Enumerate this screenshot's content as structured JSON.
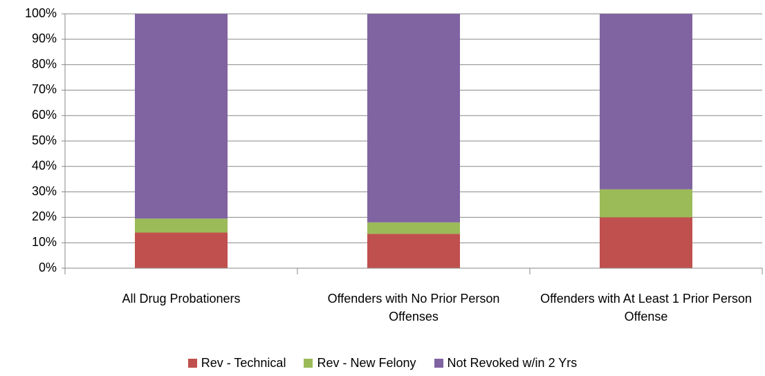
{
  "chart_data": {
    "type": "stacked_bar",
    "categories": [
      "All Drug Probationers",
      "Offenders with No Prior Person Offenses",
      "Offenders with At Least 1 Prior Person Offense"
    ],
    "series": [
      {
        "name": "Rev - Technical",
        "color": "#c0504d",
        "values": [
          14,
          13.5,
          20
        ]
      },
      {
        "name": "Rev - New Felony",
        "color": "#9bbb59",
        "values": [
          5.5,
          4.5,
          11
        ]
      },
      {
        "name": "Not Revoked w/in 2 Yrs",
        "color": "#8064a2",
        "values": [
          80.5,
          82,
          69
        ]
      }
    ],
    "ylim": [
      0,
      100
    ],
    "yticks": [
      {
        "value": 0,
        "label": "0%"
      },
      {
        "value": 10,
        "label": "10%"
      },
      {
        "value": 20,
        "label": "20%"
      },
      {
        "value": 30,
        "label": "30%"
      },
      {
        "value": 40,
        "label": "40%"
      },
      {
        "value": 50,
        "label": "50%"
      },
      {
        "value": 60,
        "label": "60%"
      },
      {
        "value": 70,
        "label": "70%"
      },
      {
        "value": 80,
        "label": "80%"
      },
      {
        "value": 90,
        "label": "90%"
      },
      {
        "value": 100,
        "label": "100%"
      }
    ],
    "grid": true,
    "legend": "bottom"
  }
}
